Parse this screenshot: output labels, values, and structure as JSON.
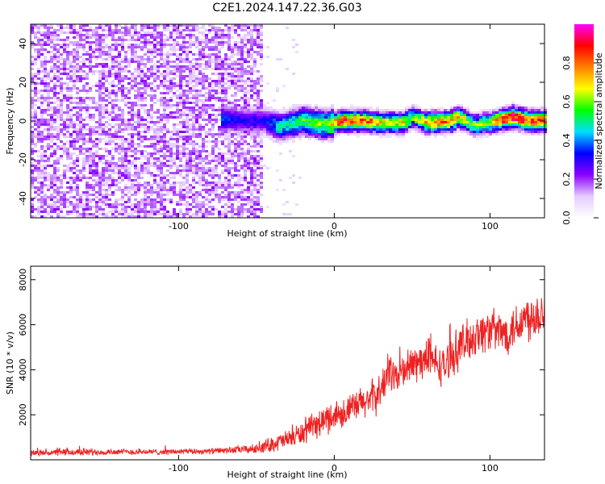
{
  "figure": {
    "title": "C2E1.2024.147.22.36.G03"
  },
  "chart_data": [
    {
      "type": "heatmap",
      "xlabel": "Height of straight line (km)",
      "ylabel": "Frequency (Hz)",
      "xlim": [
        -195,
        135
      ],
      "ylim": [
        -50,
        50
      ],
      "x_ticks": [
        -100,
        0,
        100
      ],
      "y_ticks": [
        -40,
        -20,
        0,
        20,
        40
      ],
      "noise_region_upper_x": -45,
      "signal_start_x": -72,
      "colorbar": {
        "label": "Normalized spectral amplitude",
        "range": [
          0,
          1
        ],
        "ticks": [
          0.0,
          0.2,
          0.4,
          0.6,
          0.8
        ],
        "colormap": [
          "#ffffff",
          "#e6ccff",
          "#8b00ff",
          "#0000ff",
          "#00e0ff",
          "#00ff00",
          "#ffff00",
          "#ff8000",
          "#ff0000",
          "#ff00ff"
        ]
      },
      "signal_track": {
        "x": [
          -72,
          -60,
          -45,
          -35,
          -20,
          -5,
          5,
          20,
          30,
          45,
          50,
          60,
          75,
          80,
          90,
          100,
          105,
          115,
          125,
          135
        ],
        "freq_hz": [
          1,
          0,
          0,
          -3,
          0,
          -2,
          0,
          0,
          -1,
          -1,
          2,
          -1,
          0,
          2,
          -2,
          -1,
          0,
          2,
          0,
          0
        ],
        "amplitude": [
          0.35,
          0.3,
          0.3,
          0.45,
          0.55,
          0.6,
          0.85,
          0.8,
          0.7,
          0.7,
          0.55,
          0.75,
          0.8,
          0.7,
          0.6,
          0.65,
          0.85,
          0.9,
          0.85,
          0.85
        ]
      }
    },
    {
      "type": "line",
      "xlabel": "Height of straight line (km)",
      "ylabel": "SNR (10 * v/v)",
      "xlim": [
        -195,
        135
      ],
      "ylim": [
        0,
        8600
      ],
      "x_ticks": [
        -100,
        0,
        100
      ],
      "y_ticks": [
        2000,
        4000,
        6000,
        8000
      ],
      "color": "#ee2222",
      "series": [
        {
          "x": [
            -195,
            -160,
            -140,
            -110,
            -80,
            -60,
            -50,
            -40,
            -30,
            -20,
            -10,
            0,
            10,
            20,
            30,
            35,
            40,
            50,
            60,
            70,
            80,
            90,
            100,
            110,
            120,
            130,
            135
          ],
          "values": [
            300,
            350,
            350,
            350,
            380,
            450,
            480,
            700,
            900,
            1200,
            1600,
            2000,
            2200,
            2600,
            3000,
            4000,
            3700,
            4200,
            4500,
            4100,
            5000,
            5500,
            5800,
            5600,
            6200,
            6500,
            6600
          ],
          "noise_amplitude": [
            150,
            200,
            150,
            150,
            150,
            200,
            250,
            400,
            500,
            600,
            700,
            800,
            800,
            900,
            1000,
            1000,
            900,
            1000,
            1000,
            1000,
            1100,
            1100,
            1100,
            1100,
            1200,
            1300,
            1300
          ]
        }
      ]
    }
  ]
}
